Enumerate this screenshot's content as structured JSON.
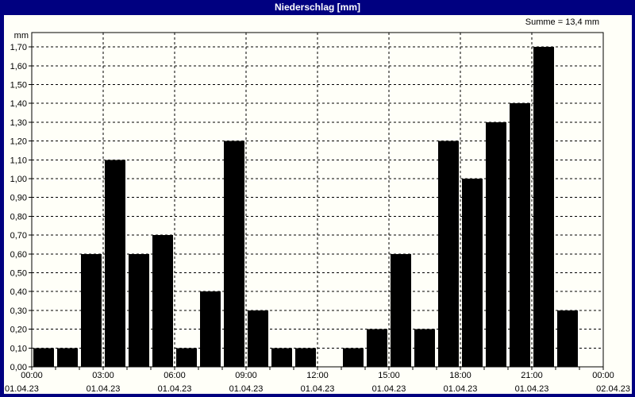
{
  "window": {
    "title": "Niederschlag [mm]"
  },
  "summary": "Summe = 13,4 mm",
  "colors": {
    "titlebar": "#000080",
    "window_border": "#000080",
    "content_background": "#fffff8",
    "bar": "#000000",
    "grid": "#000000",
    "text": "#000000",
    "title_text": "#ffffff"
  },
  "chart_data": {
    "type": "bar",
    "title": "Niederschlag [mm]",
    "ylabel": "mm",
    "unit_label": "mm",
    "sum_label": "Summe = 13,4 mm",
    "sum_value_mm": 13.4,
    "ylim": [
      0,
      1.78
    ],
    "ytick_step": 0.1,
    "ytick_values": [
      0,
      0.1,
      0.2,
      0.3,
      0.4,
      0.5,
      0.6,
      0.7,
      0.8,
      0.9,
      1.0,
      1.1,
      1.2,
      1.3,
      1.4,
      1.5,
      1.6,
      1.7
    ],
    "ytick_labels": [
      "0,00",
      "0,10",
      "0,20",
      "0,30",
      "0,40",
      "0,50",
      "0,60",
      "0,70",
      "0,80",
      "0,90",
      "1,00",
      "1,10",
      "1,20",
      "1,30",
      "1,40",
      "1,50",
      "1,60",
      "1,70"
    ],
    "grid": "dashed",
    "legend": "none",
    "x_mode": "hourly",
    "hours": [
      0,
      1,
      2,
      3,
      4,
      5,
      6,
      7,
      8,
      9,
      10,
      11,
      12,
      13,
      14,
      15,
      16,
      17,
      18,
      19,
      20,
      21,
      22,
      23
    ],
    "values": [
      0.1,
      0.1,
      0.6,
      1.1,
      0.6,
      0.7,
      0.1,
      0.4,
      1.2,
      0.3,
      0.1,
      0.1,
      0,
      0.1,
      0.2,
      0.6,
      0.2,
      1.2,
      1.0,
      1.3,
      1.4,
      1.7,
      0.3,
      0
    ],
    "xticks_major": [
      {
        "hour": 0,
        "time": "00:00",
        "date": "01.04.23"
      },
      {
        "hour": 3,
        "time": "03:00",
        "date": "01.04.23"
      },
      {
        "hour": 6,
        "time": "06:00",
        "date": "01.04.23"
      },
      {
        "hour": 9,
        "time": "09:00",
        "date": "01.04.23"
      },
      {
        "hour": 12,
        "time": "12:00",
        "date": "01.04.23"
      },
      {
        "hour": 15,
        "time": "15:00",
        "date": "01.04.23"
      },
      {
        "hour": 18,
        "time": "18:00",
        "date": "01.04.23"
      },
      {
        "hour": 21,
        "time": "21:00",
        "date": "01.04.23"
      },
      {
        "hour": 24,
        "time": "00:00",
        "date": "02.04.23"
      }
    ]
  }
}
